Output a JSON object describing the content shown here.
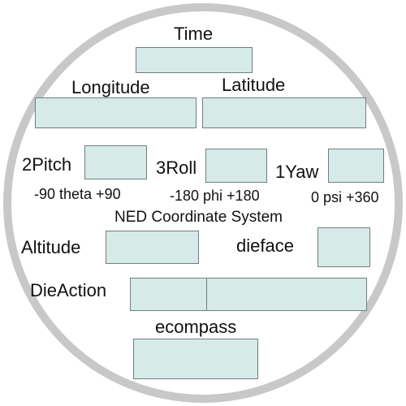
{
  "labels": {
    "time": "Time",
    "longitude": "Longitude",
    "latitude": "Latitude",
    "pitch": "2Pitch",
    "roll": "3Roll",
    "yaw": "1Yaw",
    "pitch_range": "-90 theta +90",
    "roll_range": "-180 phi +180",
    "yaw_range": "0 psi +360",
    "coordinate_system": "NED Coordinate System",
    "altitude": "Altitude",
    "dieface": "dieface",
    "dieaction": "DieAction",
    "ecompass": "ecompass"
  },
  "colors": {
    "field_fill": "#d6ebe8",
    "field_border": "#6f7f7d",
    "ring": "#c8c8c8"
  }
}
